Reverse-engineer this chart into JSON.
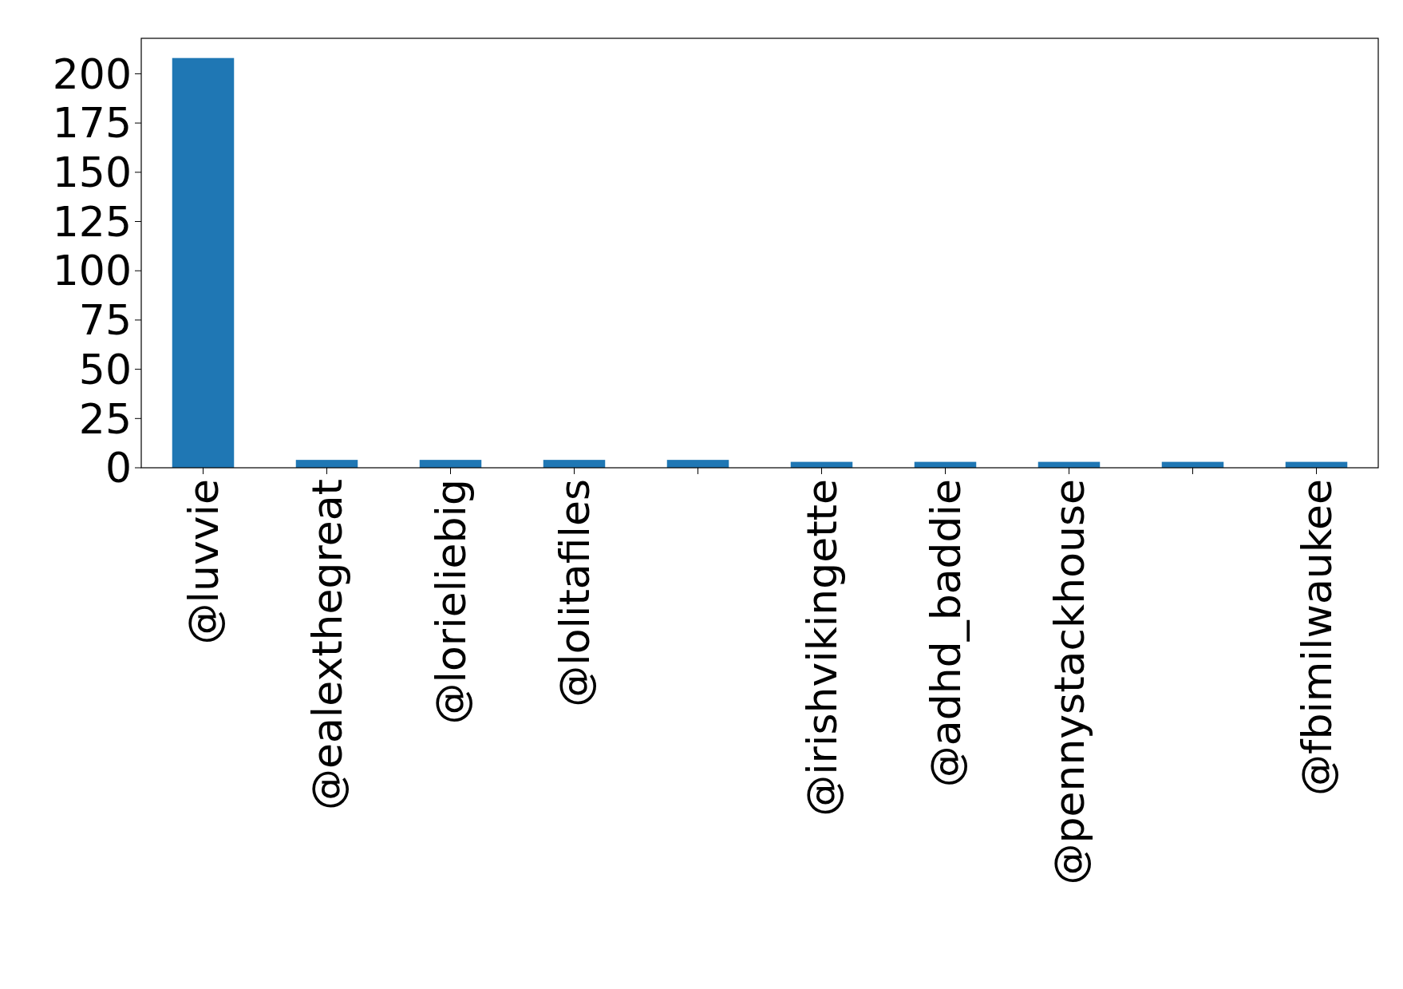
{
  "chart_data": {
    "type": "bar",
    "categories": [
      "@luvvie",
      "@ealexthegreat",
      "@lorieliebig",
      "@lolitafiles",
      null,
      "@irishvikingette",
      "@adhd_baddie",
      "@pennystackhouse",
      null,
      "@fbimilwaukee"
    ],
    "values": [
      208,
      4,
      4,
      4,
      4,
      3,
      3,
      3,
      3,
      3
    ],
    "color": "#1f77b4",
    "ylim": [
      0,
      218
    ],
    "yticks": [
      0,
      25,
      50,
      75,
      100,
      125,
      150,
      175,
      200
    ],
    "grid": false
  }
}
